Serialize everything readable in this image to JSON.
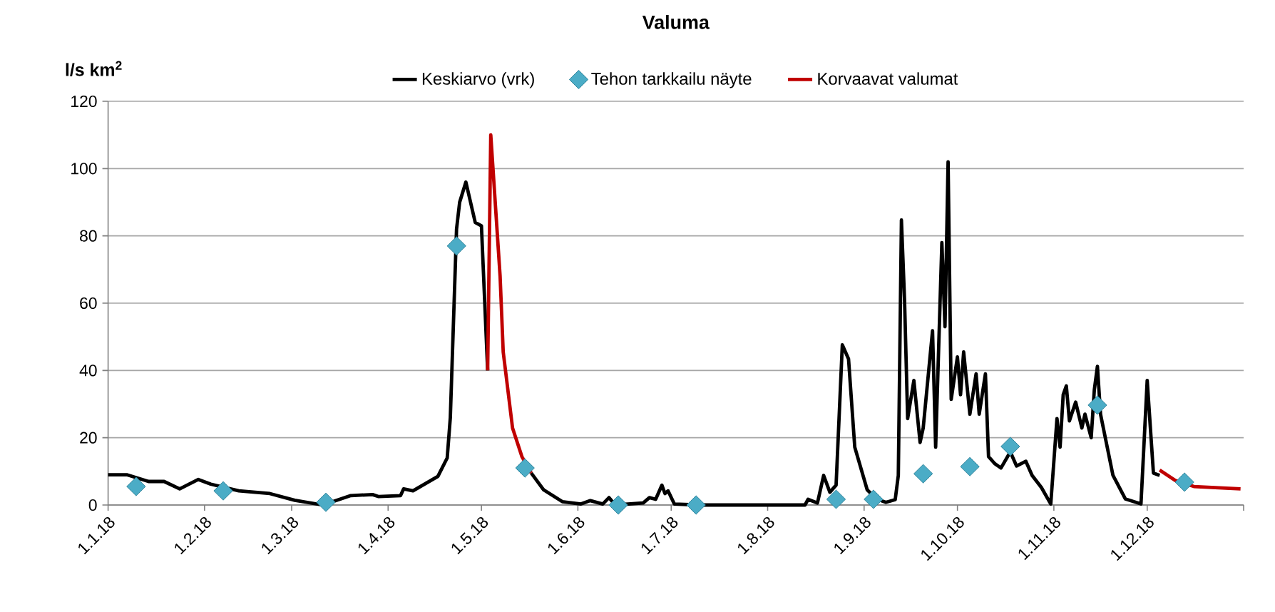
{
  "chart_data": {
    "type": "line",
    "title": "Valuma",
    "ylabel": "l/s km$^{2}$",
    "xlim": [
      "2018-01-01",
      "2019-01-01"
    ],
    "xticks": [
      {
        "value": "2018-01-01",
        "label": "1.1.18"
      },
      {
        "value": "2018-02-01",
        "label": "1.2.18"
      },
      {
        "value": "2018-03-01",
        "label": "1.3.18"
      },
      {
        "value": "2018-04-01",
        "label": "1.4.18"
      },
      {
        "value": "2018-05-01",
        "label": "1.5.18"
      },
      {
        "value": "2018-06-01",
        "label": "1.6.18"
      },
      {
        "value": "2018-07-01",
        "label": "1.7.18"
      },
      {
        "value": "2018-08-01",
        "label": "1.8.18"
      },
      {
        "value": "2018-09-01",
        "label": "1.9.18"
      },
      {
        "value": "2018-10-01",
        "label": "1.10.18"
      },
      {
        "value": "2018-11-01",
        "label": "1.11.18"
      },
      {
        "value": "2018-12-01",
        "label": "1.12.18"
      },
      {
        "value": "2019-01-01",
        "label": null
      }
    ],
    "ylim": [
      0,
      120
    ],
    "yticks": [
      0,
      20,
      40,
      60,
      80,
      100,
      120
    ],
    "grid": "y",
    "legend": "top",
    "series": [
      {
        "name": "Keskiarvo (vrk)",
        "color": "#000000",
        "x": [
          "2018-01-01",
          "2018-01-07",
          "2018-01-14",
          "2018-01-19",
          "2018-01-24",
          "2018-01-30",
          "2018-02-03",
          "2018-02-12",
          "2018-02-22",
          "2018-03-02",
          "2018-03-11",
          "2018-03-20",
          "2018-03-27",
          "2018-03-29",
          "2018-04-05",
          "2018-04-06",
          "2018-04-09",
          "2018-04-17",
          "2018-04-20",
          "2018-04-21",
          "2018-04-22",
          "2018-04-23",
          "2018-04-24",
          "2018-04-26",
          "2018-04-29",
          "2018-05-01",
          "2018-05-03",
          "2018-05-10",
          "2018-05-17",
          "2018-05-21",
          "2018-05-27",
          "2018-06-02",
          "2018-06-05",
          "2018-06-09",
          "2018-06-11",
          "2018-06-13",
          "2018-06-22",
          "2018-06-24",
          "2018-06-26",
          "2018-06-28",
          "2018-06-29",
          "2018-06-30",
          "2018-07-02",
          "2018-07-10",
          "2018-08-13",
          "2018-08-14",
          "2018-08-17",
          "2018-08-19",
          "2018-08-21",
          "2018-08-23",
          "2018-08-25",
          "2018-08-27",
          "2018-08-29",
          "2018-09-02",
          "2018-09-05",
          "2018-09-08",
          "2018-09-11",
          "2018-09-12",
          "2018-09-13",
          "2018-09-14",
          "2018-09-15",
          "2018-09-17",
          "2018-09-19",
          "2018-09-20",
          "2018-09-23",
          "2018-09-24",
          "2018-09-26",
          "2018-09-27",
          "2018-09-28",
          "2018-09-29",
          "2018-10-01",
          "2018-10-02",
          "2018-10-03",
          "2018-10-05",
          "2018-10-07",
          "2018-10-08",
          "2018-10-10",
          "2018-10-11",
          "2018-10-13",
          "2018-10-15",
          "2018-10-18",
          "2018-10-20",
          "2018-10-23",
          "2018-10-25",
          "2018-10-28",
          "2018-10-31",
          "2018-11-02",
          "2018-11-03",
          "2018-11-04",
          "2018-11-05",
          "2018-11-06",
          "2018-11-08",
          "2018-11-10",
          "2018-11-11",
          "2018-11-13",
          "2018-11-14",
          "2018-11-15",
          "2018-11-16",
          "2018-11-20",
          "2018-11-24",
          "2018-11-29",
          "2018-12-01",
          "2018-12-03",
          "2018-12-05"
        ],
        "values": [
          9,
          9,
          7,
          7,
          4.8,
          7.6,
          6.2,
          4.2,
          3.4,
          1.4,
          0,
          2.8,
          3.1,
          2.5,
          2.8,
          4.8,
          4.2,
          8.5,
          14,
          26,
          54,
          82,
          90,
          96,
          84,
          83,
          40,
          null,
          9.5,
          4.5,
          1,
          0.3,
          1.3,
          0.3,
          2.2,
          0,
          0.6,
          2.2,
          1.7,
          5.9,
          3.4,
          4.2,
          0.3,
          0,
          0,
          1.7,
          0.6,
          8.8,
          3.8,
          5.9,
          47.6,
          43.4,
          17.2,
          4.5,
          1.8,
          0.8,
          1.6,
          8.8,
          84.7,
          61,
          25.7,
          37,
          18.6,
          22.9,
          51.8,
          17.2,
          78,
          53,
          102,
          31.4,
          44,
          32.8,
          45.5,
          27,
          39,
          27,
          39,
          14.4,
          12.3,
          11,
          15.8,
          11.6,
          13,
          8.8,
          5.2,
          0.3,
          25.7,
          17.2,
          32.8,
          35.4,
          25,
          30.6,
          22.9,
          27,
          20,
          34.2,
          41.2,
          27,
          8.8,
          1.8,
          0.3,
          37,
          9.5,
          8.8
        ]
      },
      {
        "name": "Tehon tarkkailu näyte",
        "type": "scatter",
        "marker": "diamond",
        "color": "#4bacc6",
        "x": [
          "2018-01-10",
          "2018-02-07",
          "2018-03-12",
          "2018-04-23",
          "2018-05-15",
          "2018-06-14",
          "2018-07-09",
          "2018-08-23",
          "2018-09-04",
          "2018-09-20",
          "2018-10-05",
          "2018-10-18",
          "2018-11-15",
          "2018-12-13"
        ],
        "values": [
          5.5,
          4.2,
          0.8,
          77,
          11,
          0,
          0,
          1.7,
          1.7,
          9.3,
          11.4,
          17.4,
          29.7,
          6.8
        ]
      },
      {
        "name": "Korvaavat valumat",
        "color": "#c00000",
        "x": [
          "2018-05-03",
          "2018-05-04",
          "2018-05-07",
          "2018-05-08",
          "2018-05-11",
          "2018-05-14",
          "2018-05-17",
          "2018-06-01",
          "2018-12-05",
          "2018-12-10",
          "2018-12-16",
          "2018-12-24",
          "2018-12-31"
        ],
        "values": [
          40,
          110,
          68,
          45.5,
          22.9,
          14.4,
          9.5,
          null,
          10.4,
          7.3,
          5.5,
          5.1,
          4.8
        ]
      }
    ]
  }
}
